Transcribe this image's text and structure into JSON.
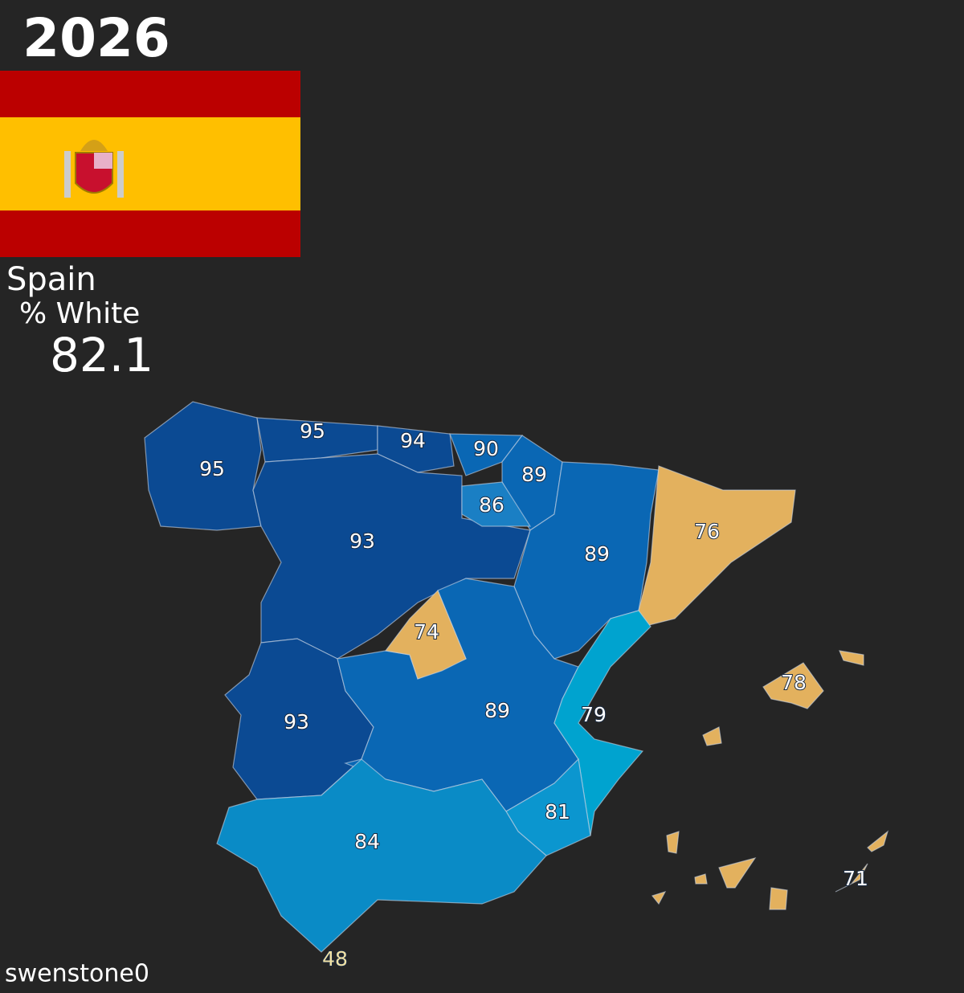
{
  "header": {
    "year": "2026",
    "country": "Spain",
    "metric": "% White",
    "value": "82.1"
  },
  "footer": {
    "credit": "swenstone0"
  },
  "regions": [
    {
      "value": 95,
      "color": "#0b4a93"
    },
    {
      "value": 95,
      "color": "#0b4a93"
    },
    {
      "value": 94,
      "color": "#0b4a93"
    },
    {
      "value": 90,
      "color": "#0a67b4"
    },
    {
      "value": 89,
      "color": "#0a67b4"
    },
    {
      "value": 86,
      "color": "#1a7fc4"
    },
    {
      "value": 93,
      "color": "#0b4a93"
    },
    {
      "value": 89,
      "color": "#0a67b4"
    },
    {
      "value": 76,
      "color": "#e3b15e"
    },
    {
      "value": 74,
      "color": "#e3b15e"
    },
    {
      "value": 93,
      "color": "#0b4a93"
    },
    {
      "value": 89,
      "color": "#0a67b4"
    },
    {
      "value": 79,
      "color": "#00a3cf"
    },
    {
      "value": 78,
      "color": "#e3b15e"
    },
    {
      "value": 81,
      "color": "#0b96cf"
    },
    {
      "value": 84,
      "color": "#0a8bc6"
    },
    {
      "value": 71,
      "color": "#e3b15e"
    },
    {
      "value": 48,
      "color": "#f1e2a6"
    }
  ]
}
